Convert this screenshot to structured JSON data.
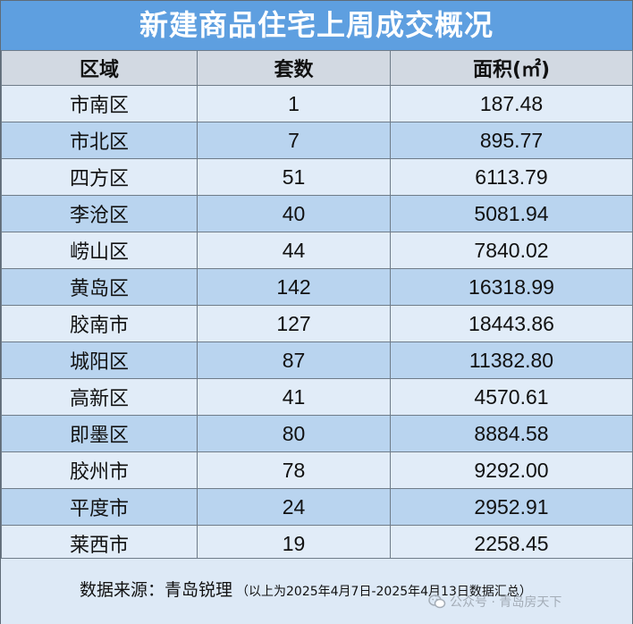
{
  "title": "新建商品住宅上周成交概况",
  "headers": [
    "区域",
    "套数",
    "面积(㎡)"
  ],
  "rows": [
    {
      "district": "市南区",
      "units": "1",
      "area": "187.48"
    },
    {
      "district": "市北区",
      "units": "7",
      "area": "895.77"
    },
    {
      "district": "四方区",
      "units": "51",
      "area": "6113.79"
    },
    {
      "district": "李沧区",
      "units": "40",
      "area": "5081.94"
    },
    {
      "district": "崂山区",
      "units": "44",
      "area": "7840.02"
    },
    {
      "district": "黄岛区",
      "units": "142",
      "area": "16318.99"
    },
    {
      "district": "胶南市",
      "units": "127",
      "area": "18443.86"
    },
    {
      "district": "城阳区",
      "units": "87",
      "area": "11382.80"
    },
    {
      "district": "高新区",
      "units": "41",
      "area": "4570.61"
    },
    {
      "district": "即墨区",
      "units": "80",
      "area": "8884.58"
    },
    {
      "district": "胶州市",
      "units": "78",
      "area": "9292.00"
    },
    {
      "district": "平度市",
      "units": "24",
      "area": "2952.91"
    },
    {
      "district": "莱西市",
      "units": "19",
      "area": "2258.45"
    }
  ],
  "footer": {
    "source_label": "数据来源：青岛锐理",
    "source_note": "（以上为2025年4月7日-2025年4月13日数据汇总）"
  },
  "watermark": {
    "text": "公众号 · 青岛房天下",
    "icon": "wechat-icon"
  },
  "colors": {
    "title_bg": "#5e9fe0",
    "row_light": "#e1ecf8",
    "row_dark": "#b9d4ef",
    "header_bg": "#d2d9e2"
  }
}
